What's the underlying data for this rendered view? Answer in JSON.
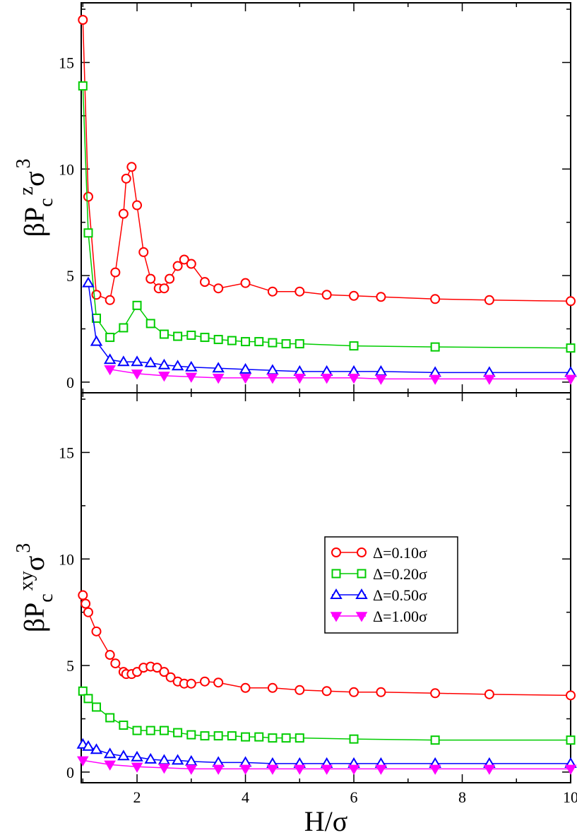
{
  "chart_data": [
    {
      "type": "line",
      "panel": "top",
      "ylabel": "βP_c^z σ^3",
      "ylabel_parts": {
        "base": "βP",
        "sub": "c",
        "sup": "z",
        "sigma": "σ",
        "exp": "3"
      },
      "xlim": [
        0.97,
        10
      ],
      "ylim": [
        -0.5,
        17.8
      ],
      "yticks": [
        0,
        5,
        10,
        15
      ],
      "ytick_labels": [
        "0",
        "5",
        "10",
        "15"
      ],
      "series": [
        {
          "name": "Δ=0.10σ",
          "color": "#ff0000",
          "marker": "circle",
          "x": [
            1.0,
            1.1,
            1.25,
            1.5,
            1.6,
            1.75,
            1.8,
            1.9,
            2.0,
            2.12,
            2.25,
            2.4,
            2.5,
            2.6,
            2.75,
            2.87,
            3.0,
            3.25,
            3.5,
            4.0,
            4.5,
            5.0,
            5.5,
            6.0,
            6.5,
            7.5,
            8.5,
            10.0
          ],
          "y": [
            17.0,
            8.7,
            4.1,
            3.85,
            5.15,
            7.9,
            9.55,
            10.1,
            8.3,
            6.1,
            4.85,
            4.4,
            4.4,
            4.85,
            5.45,
            5.75,
            5.55,
            4.7,
            4.4,
            4.65,
            4.25,
            4.25,
            4.1,
            4.05,
            4.0,
            3.9,
            3.85,
            3.8
          ]
        },
        {
          "name": "Δ=0.20σ",
          "color": "#00cc00",
          "marker": "square",
          "x": [
            1.0,
            1.1,
            1.25,
            1.5,
            1.75,
            2.0,
            2.25,
            2.5,
            2.75,
            3.0,
            3.25,
            3.5,
            3.75,
            4.0,
            4.25,
            4.5,
            4.75,
            5.0,
            6.0,
            7.5,
            10.0
          ],
          "y": [
            13.9,
            7.0,
            3.0,
            2.1,
            2.55,
            3.6,
            2.75,
            2.25,
            2.15,
            2.2,
            2.1,
            2.0,
            1.95,
            1.9,
            1.9,
            1.85,
            1.8,
            1.8,
            1.7,
            1.65,
            1.6
          ]
        },
        {
          "name": "Δ=0.50σ",
          "color": "#0000ff",
          "marker": "triangle-up",
          "x": [
            1.1,
            1.25,
            1.5,
            1.75,
            2.0,
            2.25,
            2.5,
            2.75,
            3.0,
            3.5,
            4.0,
            4.5,
            5.0,
            5.5,
            6.0,
            6.5,
            7.5,
            8.5,
            10.0
          ],
          "y": [
            4.65,
            1.9,
            1.05,
            0.95,
            0.95,
            0.9,
            0.8,
            0.75,
            0.7,
            0.65,
            0.6,
            0.55,
            0.5,
            0.5,
            0.5,
            0.5,
            0.45,
            0.45,
            0.45
          ]
        },
        {
          "name": "Δ=1.00σ",
          "color": "#ff00ff",
          "marker": "triangle-down-filled",
          "x": [
            1.5,
            2.0,
            2.5,
            3.0,
            3.5,
            4.0,
            4.5,
            5.0,
            5.5,
            6.0,
            6.5,
            7.5,
            8.5,
            10.0
          ],
          "y": [
            0.6,
            0.4,
            0.3,
            0.25,
            0.2,
            0.2,
            0.2,
            0.2,
            0.2,
            0.2,
            0.15,
            0.15,
            0.15,
            0.15
          ]
        }
      ]
    },
    {
      "type": "line",
      "panel": "bottom",
      "xlabel": "H/σ",
      "ylabel": "βP_c^xy σ^3",
      "ylabel_parts": {
        "base": "βP",
        "sub": "c",
        "sup": "xy",
        "sigma": "σ",
        "exp": "3"
      },
      "xlim": [
        0.97,
        10
      ],
      "ylim": [
        -0.5,
        17.8
      ],
      "xticks": [
        2,
        4,
        6,
        8,
        10
      ],
      "xtick_labels": [
        "2",
        "4",
        "6",
        "8",
        "10"
      ],
      "yticks": [
        0,
        5,
        10,
        15
      ],
      "ytick_labels": [
        "0",
        "5",
        "10",
        "15"
      ],
      "legend": "middle-right",
      "series": [
        {
          "name": "Δ=0.10σ",
          "color": "#ff0000",
          "marker": "circle",
          "x": [
            1.0,
            1.05,
            1.1,
            1.25,
            1.5,
            1.6,
            1.75,
            1.8,
            1.9,
            2.0,
            2.12,
            2.25,
            2.37,
            2.5,
            2.62,
            2.75,
            2.87,
            3.0,
            3.25,
            3.5,
            4.0,
            4.5,
            5.0,
            5.5,
            6.0,
            6.5,
            7.5,
            8.5,
            10.0
          ],
          "y": [
            8.3,
            7.9,
            7.5,
            6.6,
            5.5,
            5.1,
            4.7,
            4.6,
            4.6,
            4.7,
            4.9,
            4.95,
            4.9,
            4.7,
            4.45,
            4.25,
            4.15,
            4.15,
            4.25,
            4.2,
            3.95,
            3.95,
            3.85,
            3.8,
            3.75,
            3.75,
            3.7,
            3.65,
            3.6
          ]
        },
        {
          "name": "Δ=0.20σ",
          "color": "#00cc00",
          "marker": "square",
          "x": [
            1.0,
            1.1,
            1.25,
            1.5,
            1.75,
            2.0,
            2.25,
            2.5,
            2.75,
            3.0,
            3.25,
            3.5,
            3.75,
            4.0,
            4.25,
            4.5,
            4.75,
            5.0,
            6.0,
            7.5,
            10.0
          ],
          "y": [
            3.8,
            3.45,
            3.05,
            2.55,
            2.2,
            1.95,
            1.95,
            1.95,
            1.85,
            1.75,
            1.7,
            1.7,
            1.7,
            1.65,
            1.65,
            1.6,
            1.6,
            1.6,
            1.55,
            1.5,
            1.5
          ]
        },
        {
          "name": "Δ=0.50σ",
          "color": "#0000ff",
          "marker": "triangle-up",
          "x": [
            1.0,
            1.1,
            1.25,
            1.5,
            1.75,
            2.0,
            2.25,
            2.5,
            2.75,
            3.0,
            3.5,
            4.0,
            4.5,
            5.0,
            5.5,
            6.0,
            6.5,
            7.5,
            8.5,
            10.0
          ],
          "y": [
            1.3,
            1.2,
            1.05,
            0.85,
            0.75,
            0.7,
            0.6,
            0.55,
            0.55,
            0.5,
            0.45,
            0.45,
            0.4,
            0.4,
            0.4,
            0.4,
            0.4,
            0.4,
            0.4,
            0.4
          ]
        },
        {
          "name": "Δ=1.00σ",
          "color": "#ff00ff",
          "marker": "triangle-down-filled",
          "x": [
            1.0,
            1.5,
            2.0,
            2.5,
            3.0,
            3.5,
            4.0,
            4.5,
            5.0,
            5.5,
            6.0,
            6.5,
            7.5,
            8.5,
            10.0
          ],
          "y": [
            0.55,
            0.35,
            0.25,
            0.2,
            0.15,
            0.15,
            0.15,
            0.15,
            0.15,
            0.15,
            0.15,
            0.15,
            0.15,
            0.15,
            0.15
          ]
        }
      ]
    }
  ]
}
